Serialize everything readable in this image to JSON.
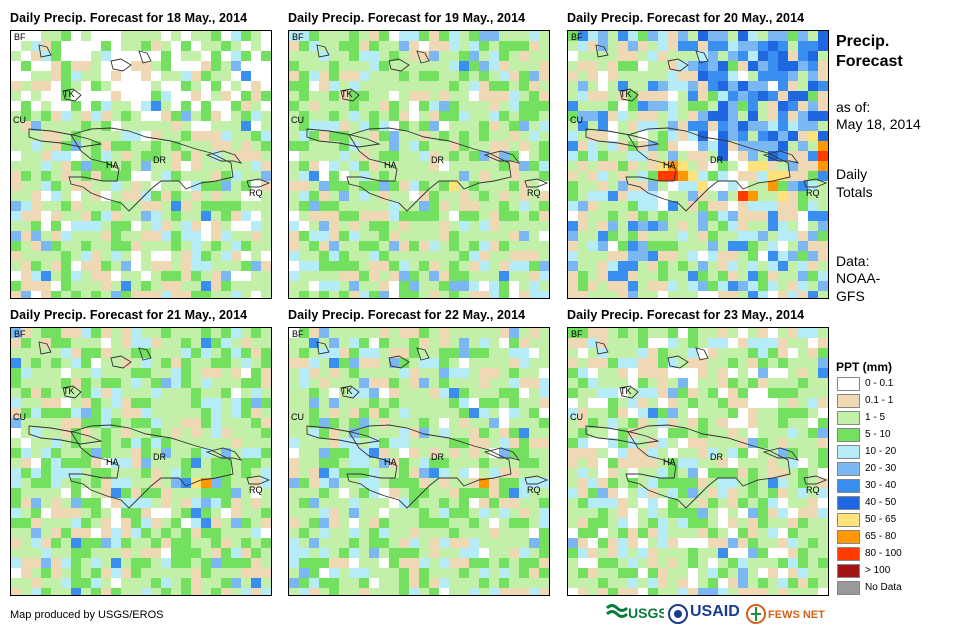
{
  "panels": [
    {
      "title": "Daily Precip. Forecast for 18 May., 2014",
      "seed": 11,
      "hot": []
    },
    {
      "title": "Daily Precip. Forecast for 19 May., 2014",
      "seed": 23,
      "hot": [
        [
          16,
          5,
          "#ffe37a"
        ]
      ]
    },
    {
      "title": "Daily Precip. Forecast for 20 May., 2014",
      "seed": 37,
      "hot": [
        [
          9,
          3,
          "#ffe37a"
        ],
        [
          10,
          3,
          "#ff9800"
        ],
        [
          11,
          3,
          "#ffe37a"
        ],
        [
          9,
          4,
          "#ff3b00"
        ],
        [
          10,
          4,
          "#ff3b00"
        ],
        [
          11,
          4,
          "#ff9800"
        ],
        [
          12,
          4,
          "#ffe37a"
        ],
        [
          13,
          5,
          "#ffe37a"
        ],
        [
          18,
          3,
          "#ffe37a"
        ],
        [
          19,
          3,
          "#ffe37a"
        ],
        [
          20,
          4,
          "#ffe37a"
        ],
        [
          21,
          4,
          "#ffe37a"
        ],
        [
          17,
          6,
          "#ff3b00"
        ],
        [
          18,
          6,
          "#ff9800"
        ],
        [
          20,
          5,
          "#ff9800"
        ],
        [
          21,
          6,
          "#ffe37a"
        ],
        [
          24,
          0,
          "#ffe37a"
        ],
        [
          25,
          1,
          "#ff9800"
        ],
        [
          25,
          2,
          "#ff3b00"
        ],
        [
          25,
          3,
          "#ff9800"
        ]
      ]
    },
    {
      "title": "Daily Precip. Forecast for 21 May., 2014",
      "seed": 41,
      "hot": [
        [
          18,
          5,
          "#ffe37a"
        ],
        [
          19,
          5,
          "#ff9800"
        ]
      ]
    },
    {
      "title": "Daily Precip. Forecast for 22 May., 2014",
      "seed": 53,
      "hot": [
        [
          19,
          5,
          "#ff9800"
        ]
      ]
    },
    {
      "title": "Daily Precip. Forecast for 23 May., 2014",
      "seed": 67,
      "hot": []
    }
  ],
  "map_labels": [
    "BF",
    "TK",
    "CU",
    "HA",
    "DR",
    "RQ"
  ],
  "side": {
    "title_line1": "Precip.",
    "title_line2": "Forecast",
    "asof_line1": "as of:",
    "asof_line2": "May 18, 2014",
    "totals_line1": "Daily",
    "totals_line2": "Totals",
    "data_line1": "Data:",
    "data_line2": "NOAA-",
    "data_line3": "GFS"
  },
  "legend": {
    "title": "PPT (mm)",
    "items": [
      {
        "label": "0 - 0.1",
        "color": "#ffffff"
      },
      {
        "label": "0.1 - 1",
        "color": "#efd9b4"
      },
      {
        "label": "1 - 5",
        "color": "#c2f0a8"
      },
      {
        "label": "5 - 10",
        "color": "#74e060"
      },
      {
        "label": "10 - 20",
        "color": "#b6ecf7"
      },
      {
        "label": "20 - 30",
        "color": "#7ab7f3"
      },
      {
        "label": "30 - 40",
        "color": "#3a8ef0"
      },
      {
        "label": "40 - 50",
        "color": "#1f67e0"
      },
      {
        "label": "50 - 65",
        "color": "#ffe37a"
      },
      {
        "label": "65 - 80",
        "color": "#ff9800"
      },
      {
        "label": "80 - 100",
        "color": "#ff3b00"
      },
      {
        "label": "> 100",
        "color": "#a31515"
      },
      {
        "label": "No Data",
        "color": "#999999"
      }
    ]
  },
  "footer": "Map produced by USGS/EROS",
  "logos": {
    "usgs": "USGS",
    "usaid": "USAID",
    "fews": "FEWS NET"
  }
}
